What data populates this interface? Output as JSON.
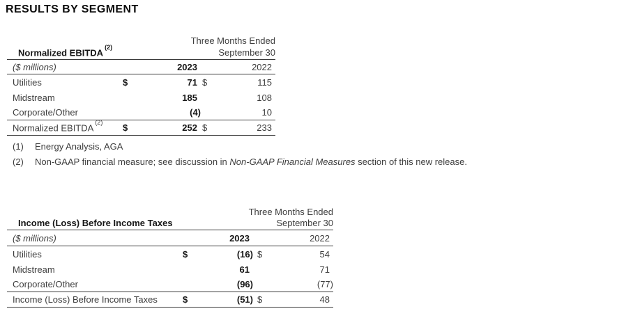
{
  "page_title": "RESULTS BY SEGMENT",
  "table1": {
    "period_line1": "Three Months Ended",
    "period_line2": "September 30",
    "title": "Normalized EBITDA",
    "title_sup": "(2)",
    "unit_label": "($ millions)",
    "col_2023": "2023",
    "col_2022": "2022",
    "rows": [
      {
        "label": "Utilities",
        "d1": "$",
        "v2023": "71",
        "d2": "$",
        "v2022": "115"
      },
      {
        "label": "Midstream",
        "v2023": "185",
        "v2022": "108"
      },
      {
        "label": "Corporate/Other",
        "v2023": "(4)",
        "v2022": "10"
      }
    ],
    "total": {
      "label": "Normalized EBITDA",
      "label_sup": "(2)",
      "d1": "$",
      "v2023": "252",
      "d2": "$",
      "v2022": "233"
    }
  },
  "footnotes": [
    {
      "marker": "(1)",
      "text": "Energy Analysis, AGA"
    },
    {
      "marker": "(2)",
      "text_pre": "Non-GAAP financial measure; see discussion in ",
      "text_italic": "Non-GAAP Financial Measures",
      "text_post": " section of this new release."
    }
  ],
  "table2": {
    "period_line1": "Three Months Ended",
    "period_line2": "September 30",
    "title": "Income (Loss) Before Income Taxes",
    "unit_label": "($ millions)",
    "col_2023": "2023",
    "col_2022": "2022",
    "rows": [
      {
        "label": "Utilities",
        "d1": "$",
        "v2023": "(16)",
        "d2": "$",
        "v2022": "54"
      },
      {
        "label": "Midstream",
        "v2023": "61",
        "v2022": "71"
      },
      {
        "label": "Corporate/Other",
        "v2023": "(96)",
        "v2022": "(77)"
      }
    ],
    "total": {
      "label": "Income (Loss) Before Income Taxes",
      "d1": "$",
      "v2023": "(51)",
      "d2": "$",
      "v2022": "48"
    }
  }
}
